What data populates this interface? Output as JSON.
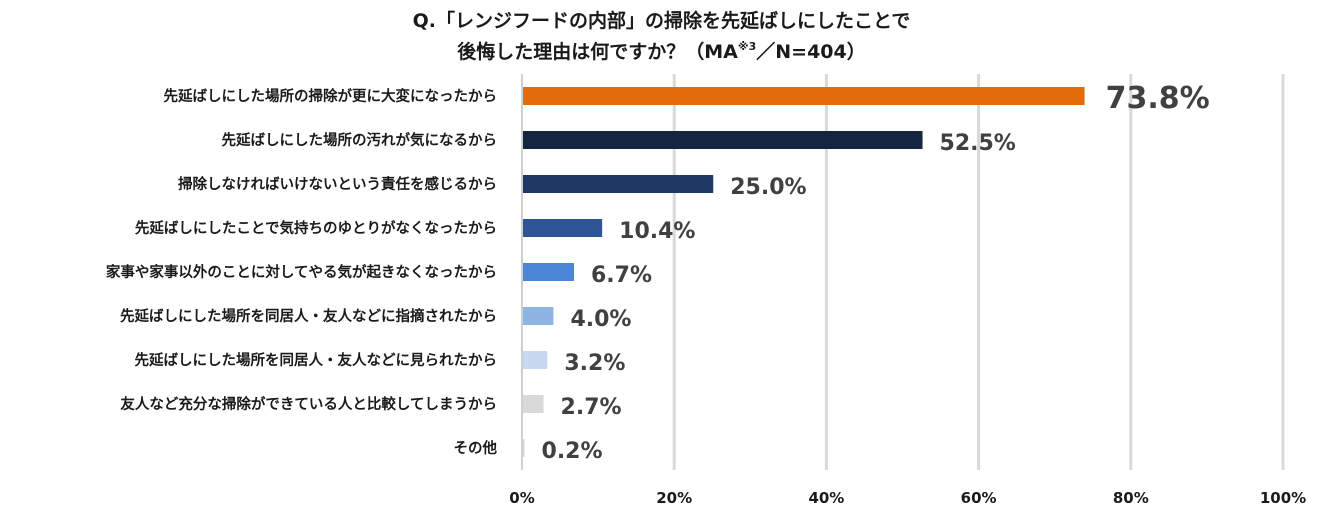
{
  "title": {
    "line1": "Q.「レンジフードの内部」の掃除を先延ばしにしたことで",
    "line2_prefix": "後悔した理由は何ですか？（MA",
    "line2_sup": "※3",
    "line2_suffix": "／N=404）"
  },
  "chart_data": {
    "type": "bar",
    "orientation": "horizontal",
    "categories": [
      "先延ばしにした場所の掃除が更に大変になったから",
      "先延ばしにした場所の汚れが気になるから",
      "掃除しなければいけないという責任を感じるから",
      "先延ばしにしたことで気持ちのゆとりがなくなったから",
      "家事や家事以外のことに対してやる気が起きなくなったから",
      "先延ばしにした場所を同居人・友人などに指摘されたから",
      "先延ばしにした場所を同居人・友人などに見られたから",
      "友人など充分な掃除ができている人と比較してしまうから",
      "その他"
    ],
    "values": [
      73.8,
      52.5,
      25.0,
      10.4,
      6.7,
      4.0,
      3.2,
      2.7,
      0.2
    ],
    "value_labels": [
      "73.8%",
      "52.5%",
      "25.0%",
      "10.4%",
      "6.7%",
      "4.0%",
      "3.2%",
      "2.7%",
      "0.2%"
    ],
    "colors": [
      "#E36C0A",
      "#16253F",
      "#1F3864",
      "#2F5597",
      "#4A86D4",
      "#8EB4E3",
      "#C6D9F1",
      "#D9D9D9",
      "#D9D9D9"
    ],
    "xlim": [
      0,
      100
    ],
    "xticks": [
      "0%",
      "20%",
      "40%",
      "60%",
      "80%",
      "100%"
    ],
    "grid": true
  }
}
